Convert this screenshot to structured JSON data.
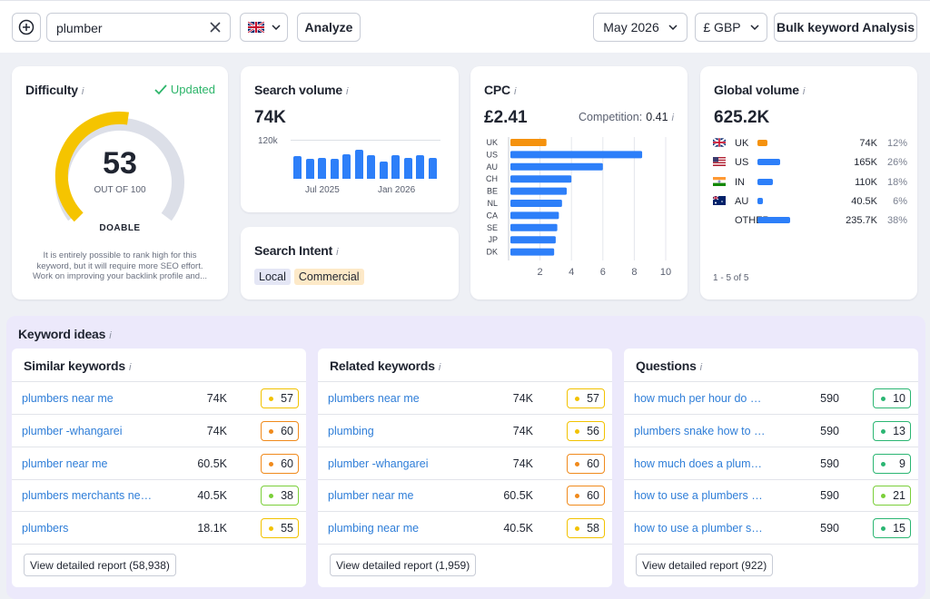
{
  "toolbar": {
    "search_value": "plumber",
    "analyze_label": "Analyze",
    "month": "May 2026",
    "currency": "£ GBP",
    "bulk_label": "Bulk keyword Analysis"
  },
  "difficulty": {
    "title": "Difficulty",
    "updated": "Updated",
    "score": "53",
    "score_value": 53,
    "out_of": "OUT OF 100",
    "label": "DOABLE",
    "description": "It is entirely possible to rank high for this keyword, but it will require more SEO effort. Work on improving your backlink profile and...",
    "colors": {
      "fill": "#f5c400",
      "track": "#dcdfe8"
    }
  },
  "search_volume": {
    "title": "Search volume",
    "value": "74K",
    "y_tick": "120k",
    "x_ticks": [
      "Jul 2025",
      "Jan 2026"
    ],
    "bars": [
      0.62,
      0.55,
      0.57,
      0.55,
      0.68,
      0.8,
      0.64,
      0.48,
      0.64,
      0.58,
      0.64,
      0.58
    ]
  },
  "search_intent": {
    "title": "Search Intent",
    "tags": [
      "Local",
      "Commercial"
    ]
  },
  "cpc": {
    "title": "CPC",
    "value": "£2.41",
    "competition_label": "Competition:",
    "competition_value": "0.41"
  },
  "chart_data": {
    "type": "bar",
    "orientation": "horizontal",
    "categories": [
      "UK",
      "US",
      "AU",
      "CH",
      "BE",
      "NL",
      "CA",
      "SE",
      "JP",
      "DK"
    ],
    "values": [
      2.41,
      8.5,
      6.0,
      4.0,
      3.7,
      3.4,
      3.2,
      3.1,
      3.0,
      2.9
    ],
    "x_ticks": [
      "2",
      "4",
      "6",
      "8",
      "10"
    ],
    "xlim": [
      0,
      10
    ],
    "colors": {
      "highlight": "#f5920e",
      "default": "#2d7ff9"
    }
  },
  "global_volume": {
    "title": "Global volume",
    "value": "625.2K",
    "rows": [
      {
        "code": "UK",
        "volume": "74K",
        "pct": "12%",
        "share": 0.12,
        "color": "#f5920e",
        "flag": "uk"
      },
      {
        "code": "US",
        "volume": "165K",
        "pct": "26%",
        "share": 0.26,
        "color": "#2d7ff9",
        "flag": "us"
      },
      {
        "code": "IN",
        "volume": "110K",
        "pct": "18%",
        "share": 0.18,
        "color": "#2d7ff9",
        "flag": "in"
      },
      {
        "code": "AU",
        "volume": "40.5K",
        "pct": "6%",
        "share": 0.06,
        "color": "#2d7ff9",
        "flag": "au"
      },
      {
        "code": "OTHER",
        "volume": "235.7K",
        "pct": "38%",
        "share": 0.38,
        "color": "#2d7ff9",
        "flag": ""
      }
    ],
    "footer": "1 - 5 of 5"
  },
  "keyword_ideas": {
    "title": "Keyword ideas",
    "panels": [
      {
        "title": "Similar keywords",
        "button": "View detailed report (58,938)",
        "rows": [
          {
            "keyword": "plumbers near me",
            "volume": "74K",
            "kd": "57",
            "kd_color": "#f2c200"
          },
          {
            "keyword": "plumber -whangarei",
            "volume": "74K",
            "kd": "60",
            "kd_color": "#f08a1c"
          },
          {
            "keyword": "plumber near me",
            "volume": "60.5K",
            "kd": "60",
            "kd_color": "#f08a1c"
          },
          {
            "keyword": "plumbers merchants near me",
            "volume": "40.5K",
            "kd": "38",
            "kd_color": "#7bcf3a"
          },
          {
            "keyword": "plumbers",
            "volume": "18.1K",
            "kd": "55",
            "kd_color": "#f2c200"
          }
        ]
      },
      {
        "title": "Related keywords",
        "button": "View detailed report (1,959)",
        "rows": [
          {
            "keyword": "plumbers near me",
            "volume": "74K",
            "kd": "57",
            "kd_color": "#f2c200"
          },
          {
            "keyword": "plumbing",
            "volume": "74K",
            "kd": "56",
            "kd_color": "#f2c200"
          },
          {
            "keyword": "plumber -whangarei",
            "volume": "74K",
            "kd": "60",
            "kd_color": "#f08a1c"
          },
          {
            "keyword": "plumber near me",
            "volume": "60.5K",
            "kd": "60",
            "kd_color": "#f08a1c"
          },
          {
            "keyword": "plumbing near me",
            "volume": "40.5K",
            "kd": "58",
            "kd_color": "#f2c200"
          }
        ]
      },
      {
        "title": "Questions",
        "button": "View detailed report (922)",
        "rows": [
          {
            "keyword": "how much per hour do plumbers charge",
            "volume": "590",
            "kd": "10",
            "kd_color": "#2bb673"
          },
          {
            "keyword": "plumbers snake how to use",
            "volume": "590",
            "kd": "13",
            "kd_color": "#2bb673"
          },
          {
            "keyword": "how much does a plumber earn",
            "volume": "590",
            "kd": "9",
            "kd_color": "#2bb673"
          },
          {
            "keyword": "how to use a plumbers snake",
            "volume": "590",
            "kd": "21",
            "kd_color": "#7bcf3a"
          },
          {
            "keyword": "how to use a plumber snake",
            "volume": "590",
            "kd": "15",
            "kd_color": "#2bb673"
          }
        ]
      }
    ]
  }
}
